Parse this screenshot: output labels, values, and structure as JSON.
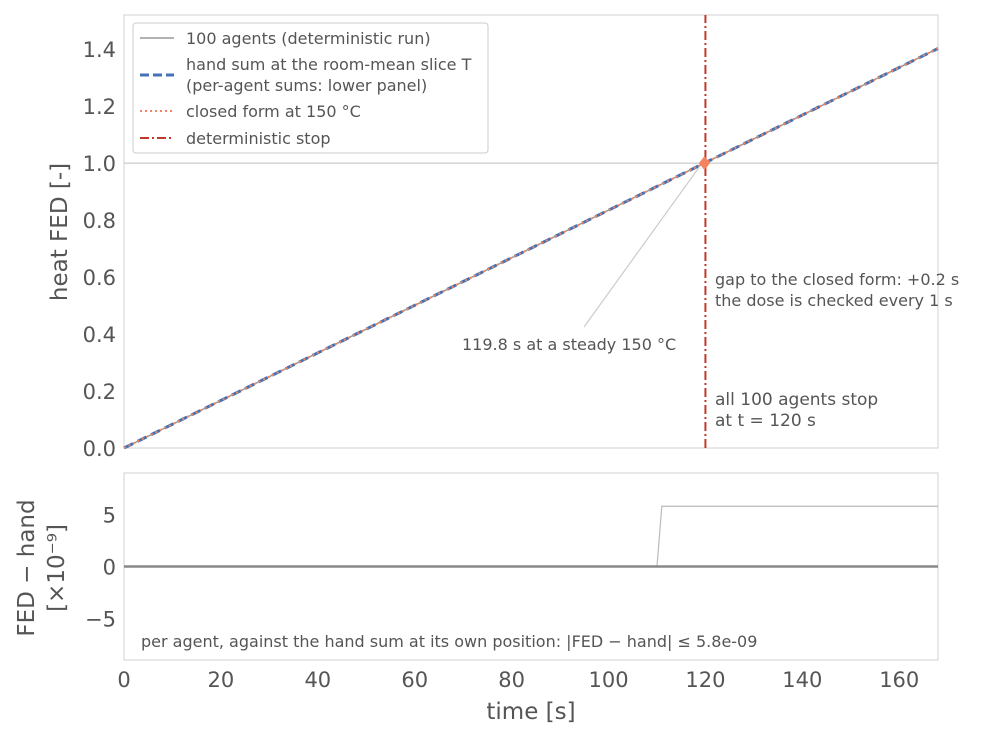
{
  "chart_data": [
    {
      "type": "line",
      "panel": "top",
      "xlim": [
        0,
        168
      ],
      "ylim": [
        0,
        1.52
      ],
      "ylabel": "heat FED [-]",
      "yticks": [
        0.0,
        0.2,
        0.4,
        0.6,
        0.8,
        1.0,
        1.2,
        1.4
      ],
      "ytick_labels": [
        "0.0",
        "0.2",
        "0.4",
        "0.6",
        "0.8",
        "1.0",
        "1.2",
        "1.4"
      ],
      "grid": false,
      "legend_position": "top-left",
      "series": [
        {
          "name": "100 agents (deterministic run)",
          "style": "solid",
          "color": "#999999",
          "x": [
            0,
            168
          ],
          "y": [
            0,
            1.4025
          ]
        },
        {
          "name": "hand sum at the room-mean slice T",
          "name_line2": "(per-agent sums: lower panel)",
          "style": "dashed",
          "color": "#4472b4",
          "x": [
            0,
            168
          ],
          "y": [
            0,
            1.4025
          ]
        },
        {
          "name": "closed form at 150 °C",
          "style": "dotted",
          "color": "#f4845f",
          "x": [
            0,
            168
          ],
          "y": [
            0,
            1.4025
          ]
        },
        {
          "name": "deterministic stop",
          "style": "dashdot",
          "color": "#c0392b",
          "x": [
            120,
            120
          ],
          "y": [
            0,
            1.52
          ]
        }
      ],
      "reference_line": {
        "y": 1.0,
        "color": "#cccccc"
      },
      "marker": {
        "x": 119.8,
        "y": 1.0,
        "color": "#f4845f",
        "shape": "diamond"
      },
      "annotations": {
        "pointer": "119.8 s at a steady 150 °C",
        "gap_line1": "gap to the closed form: +0.2 s",
        "gap_line2": "the dose is checked every 1 s",
        "stop_line1": "all 100 agents stop",
        "stop_line2": "at t = 120 s"
      }
    },
    {
      "type": "line",
      "panel": "bottom",
      "xlim": [
        0,
        168
      ],
      "ylim": [
        -9,
        9
      ],
      "xlabel": "time [s]",
      "ylabel_line1": "FED − hand",
      "ylabel_line2": "[×10⁻⁹]",
      "xticks": [
        0,
        20,
        40,
        60,
        80,
        100,
        120,
        140,
        160
      ],
      "xtick_labels": [
        "0",
        "20",
        "40",
        "60",
        "80",
        "100",
        "120",
        "140",
        "160"
      ],
      "yticks": [
        -5,
        0,
        5
      ],
      "ytick_labels": [
        "−5",
        "0",
        "5"
      ],
      "series": [
        {
          "style": "solid",
          "color": "#bbbbbb",
          "x": [
            0,
            110,
            111,
            168
          ],
          "y": [
            0,
            0,
            5.8,
            5.8
          ]
        },
        {
          "style": "solid",
          "color": "#888888",
          "x": [
            0,
            168
          ],
          "y": [
            0,
            0
          ]
        }
      ],
      "annotation": "per agent, against the hand sum at its own position: |FED − hand| ≤ 5.8e-09"
    }
  ]
}
